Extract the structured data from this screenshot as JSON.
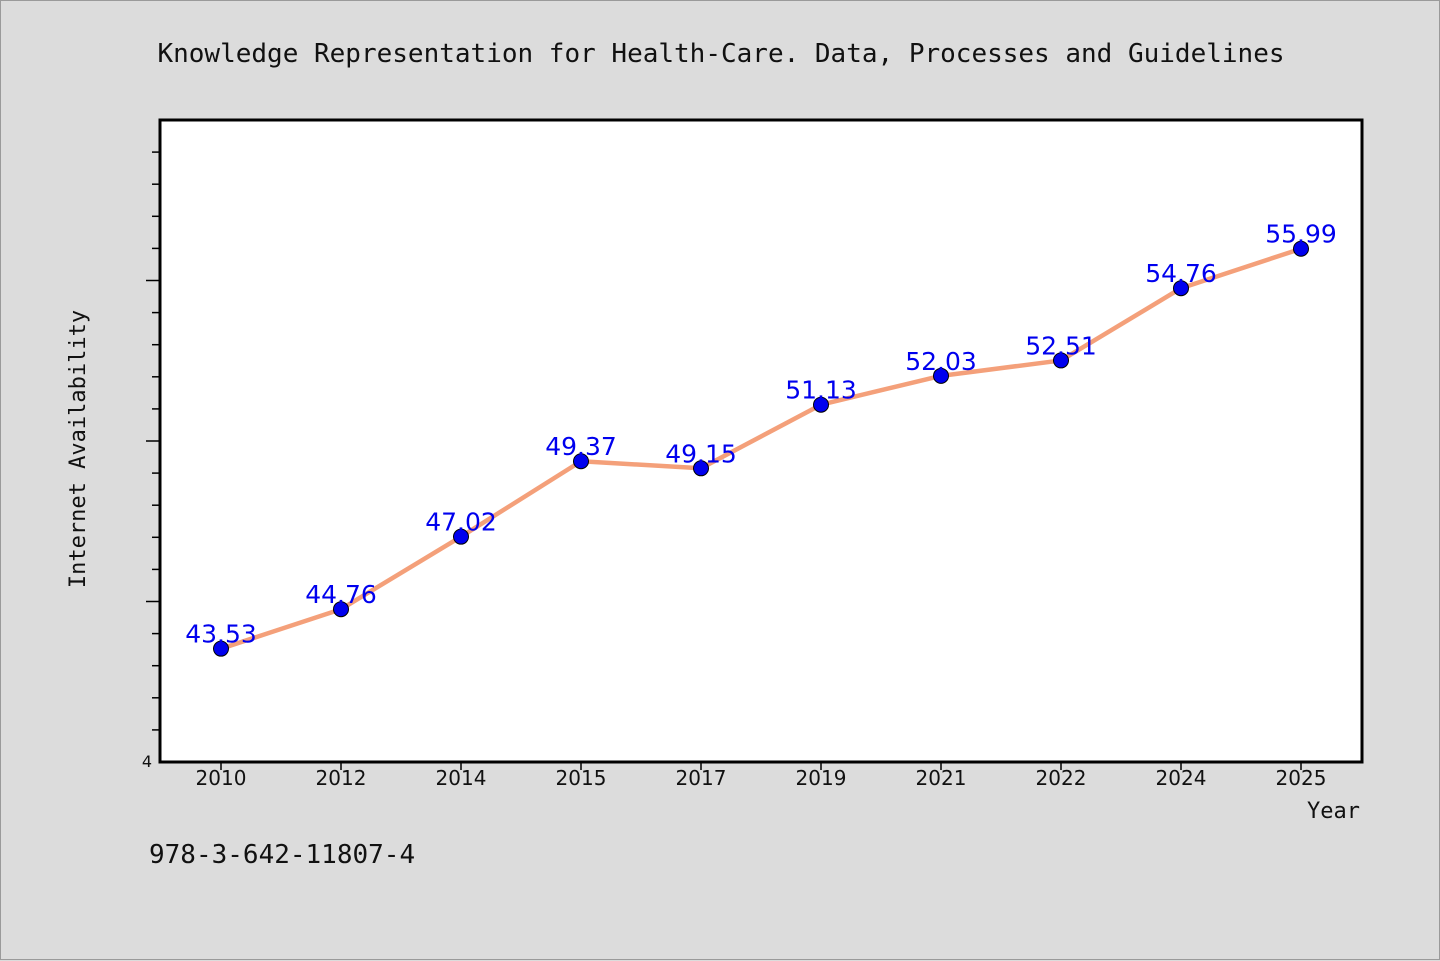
{
  "chart_data": {
    "type": "line",
    "title": "Knowledge Representation for Health-Care. Data, Processes and Guidelines",
    "xlabel": "Year",
    "ylabel": "Internet Availability",
    "categories": [
      "2010",
      "2012",
      "2014",
      "2015",
      "2017",
      "2019",
      "2021",
      "2022",
      "2024",
      "2025"
    ],
    "series": [
      {
        "values": [
          43.53,
          44.76,
          47.02,
          49.37,
          49.15,
          51.13,
          52.03,
          52.51,
          54.76,
          55.99
        ]
      }
    ],
    "data_labels": [
      "43.53",
      "44.76",
      "47.02",
      "49.37",
      "49.15",
      "51.13",
      "52.03",
      "52.51",
      "54.76",
      "55.99"
    ],
    "y_origin_label": "4",
    "ylim": [
      40,
      60
    ],
    "grid": false,
    "legend": "none",
    "colors": {
      "line": "#f4a07a",
      "marker": "#0000ee",
      "label": "#0000ee"
    }
  },
  "footer": {
    "isbn": "978-3-642-11807-4"
  }
}
